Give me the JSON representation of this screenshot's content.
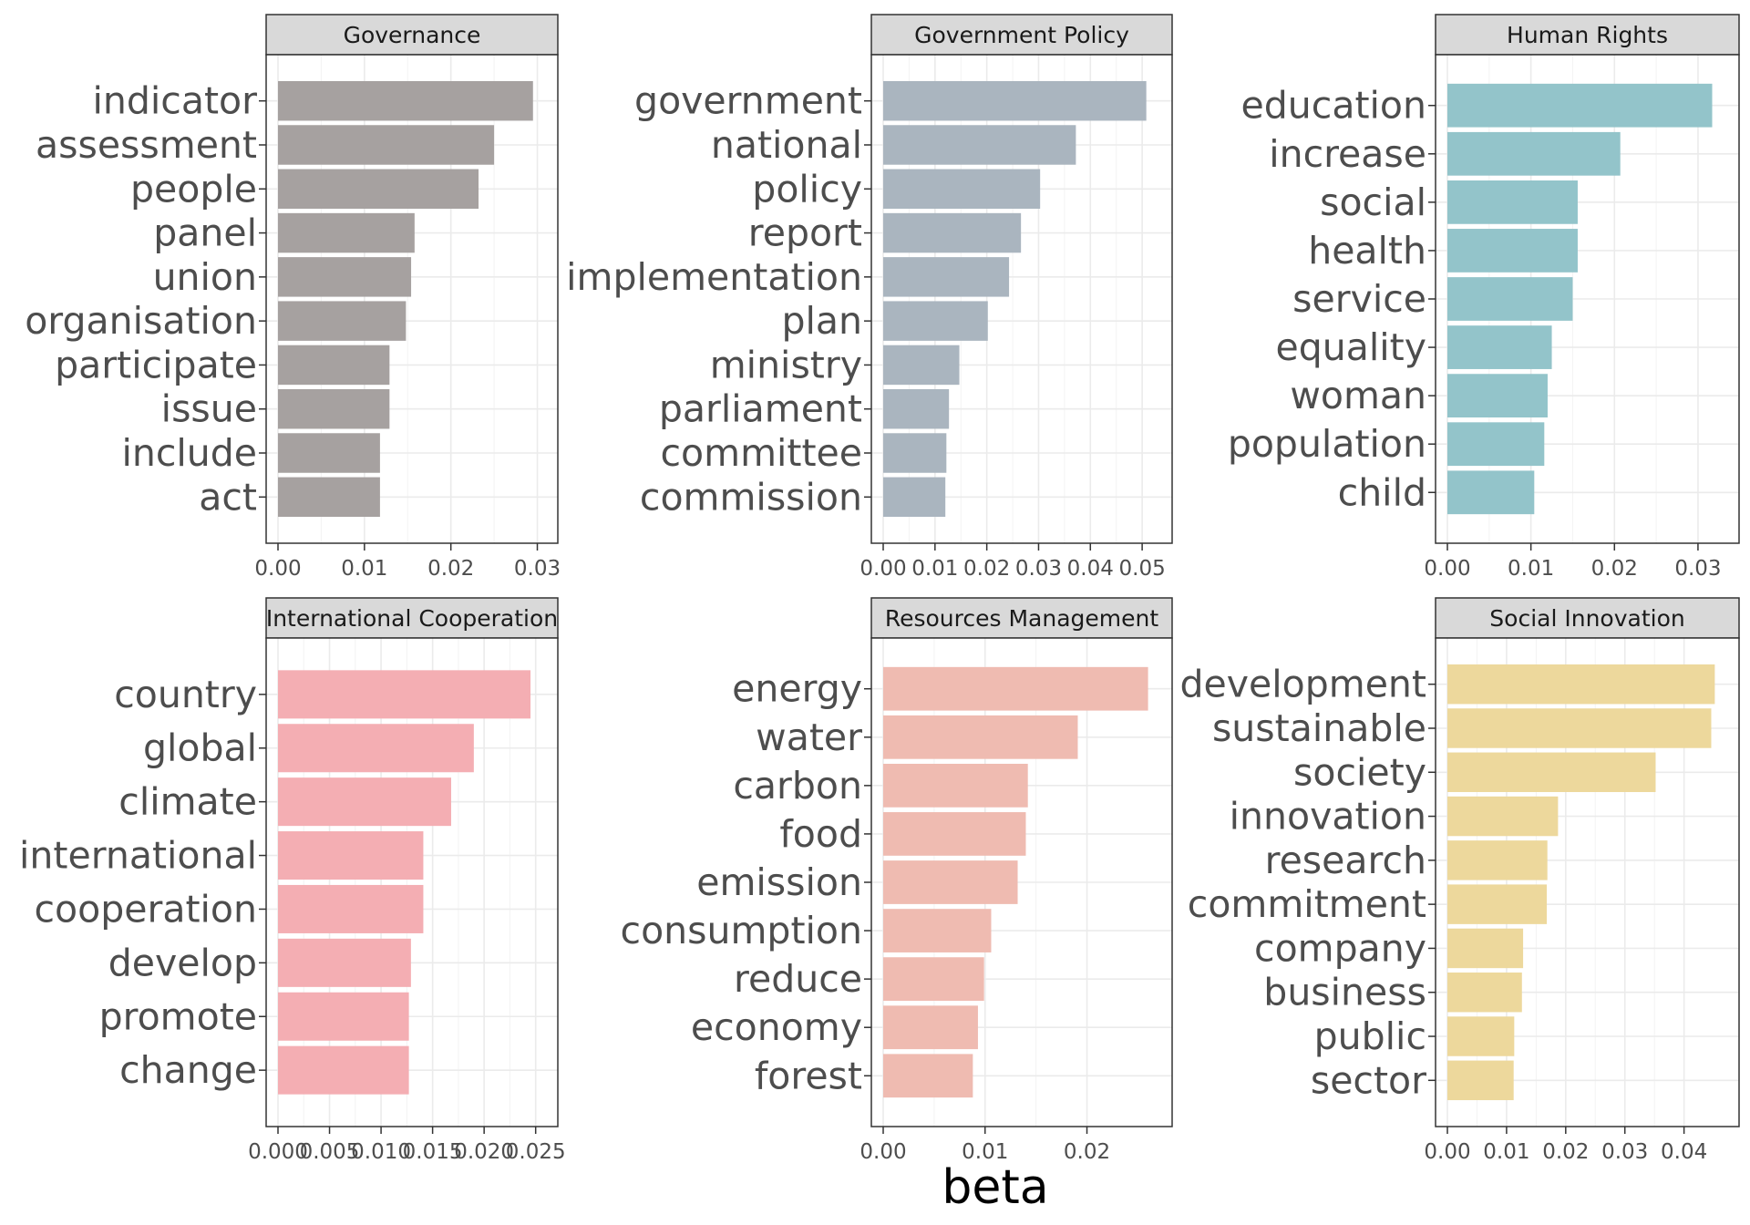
{
  "chart_data": {
    "type": "bar",
    "orientation": "horizontal",
    "facets": "2x3",
    "xlabel": "beta",
    "grid": true,
    "panels": [
      {
        "title": "Governance",
        "color": "#a6a1a0",
        "xlim": [
          0,
          0.031
        ],
        "ticks": [
          "0.00",
          "0.01",
          "0.02",
          "0.03"
        ],
        "tick_values": [
          0,
          0.01,
          0.02,
          0.03
        ],
        "categories": [
          "indicator",
          "assessment",
          "people",
          "panel",
          "union",
          "organisation",
          "participate",
          "issue",
          "include",
          "act"
        ],
        "values": [
          0.0295,
          0.025,
          0.0232,
          0.0158,
          0.0154,
          0.0148,
          0.0129,
          0.0129,
          0.0118,
          0.0118
        ]
      },
      {
        "title": "Government Policy",
        "color": "#aab5bf",
        "xlim": [
          0,
          0.0535
        ],
        "ticks": [
          "0.00",
          "0.01",
          "0.02",
          "0.03",
          "0.04",
          "0.05"
        ],
        "tick_values": [
          0,
          0.01,
          0.02,
          0.03,
          0.04,
          0.05
        ],
        "categories": [
          "government",
          "national",
          "policy",
          "report",
          "implementation",
          "plan",
          "ministry",
          "parliament",
          "committee",
          "commission"
        ],
        "values": [
          0.0508,
          0.0372,
          0.0303,
          0.0266,
          0.0243,
          0.0202,
          0.0147,
          0.0127,
          0.0122,
          0.012
        ]
      },
      {
        "title": "Human Rights",
        "color": "#93c4ca",
        "xlim": [
          0,
          0.0335
        ],
        "ticks": [
          "0.00",
          "0.01",
          "0.02",
          "0.03"
        ],
        "tick_values": [
          0,
          0.01,
          0.02,
          0.03
        ],
        "categories": [
          "education",
          "increase",
          "social",
          "health",
          "service",
          "equality",
          "woman",
          "population",
          "child"
        ],
        "values": [
          0.0317,
          0.0207,
          0.0156,
          0.0156,
          0.015,
          0.0125,
          0.012,
          0.0116,
          0.0104
        ]
      },
      {
        "title": "International Cooperation",
        "color": "#f4aeb3",
        "xlim": [
          0,
          0.026
        ],
        "ticks": [
          "0.000",
          "0.005",
          "0.010",
          "0.015",
          "0.020",
          "0.025"
        ],
        "tick_values": [
          0,
          0.005,
          0.01,
          0.015,
          0.02,
          0.025
        ],
        "categories": [
          "country",
          "global",
          "climate",
          "international",
          "cooperation",
          "develop",
          "promote",
          "change"
        ],
        "values": [
          0.0245,
          0.019,
          0.0168,
          0.0141,
          0.0141,
          0.0129,
          0.0127,
          0.0127
        ]
      },
      {
        "title": "Resources Management",
        "color": "#efbbb1",
        "xlim": [
          0,
          0.0272
        ],
        "ticks": [
          "0.00",
          "0.01",
          "0.02"
        ],
        "tick_values": [
          0,
          0.01,
          0.02
        ],
        "categories": [
          "energy",
          "water",
          "carbon",
          "food",
          "emission",
          "consumption",
          "reduce",
          "economy",
          "forest"
        ],
        "values": [
          0.026,
          0.0191,
          0.0142,
          0.014,
          0.0132,
          0.0106,
          0.0099,
          0.0093,
          0.0088
        ]
      },
      {
        "title": "Social Innovation",
        "color": "#edd89c",
        "xlim": [
          0,
          0.0473
        ],
        "ticks": [
          "0.00",
          "0.01",
          "0.02",
          "0.03",
          "0.04"
        ],
        "tick_values": [
          0,
          0.01,
          0.02,
          0.03,
          0.04
        ],
        "categories": [
          "development",
          "sustainable",
          "society",
          "innovation",
          "research",
          "commitment",
          "company",
          "business",
          "public",
          "sector"
        ],
        "values": [
          0.0452,
          0.0446,
          0.0352,
          0.0187,
          0.0169,
          0.0168,
          0.0128,
          0.0126,
          0.0113,
          0.0112
        ]
      }
    ]
  }
}
